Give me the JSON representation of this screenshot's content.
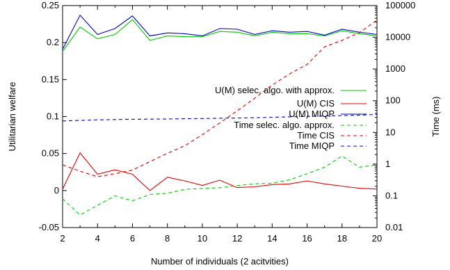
{
  "chart_data": {
    "type": "line",
    "xlabel": "Number of individuals (2 acitvities)",
    "ylabel_left": "Utilitarian welfare",
    "ylabel_right": "Time (ms)",
    "x_ticks": [
      "2",
      "4",
      "6",
      "8",
      "10",
      "12",
      "14",
      "16",
      "18",
      "20"
    ],
    "y_left_ticks": [
      "-0.05",
      "0",
      "0.05",
      "0.1",
      "0.15",
      "0.2",
      "0.25"
    ],
    "y_right_ticks": [
      "0.01",
      "0.1",
      "1",
      "10",
      "100",
      "1000",
      "10000",
      "100000"
    ],
    "xlim": [
      2,
      20
    ],
    "ylim_left": [
      -0.05,
      0.25
    ],
    "ylim_right": [
      0.01,
      100000
    ],
    "y_right_scale": "log",
    "grid": false,
    "legend_position": "center-right",
    "x": [
      2,
      3,
      4,
      5,
      6,
      7,
      8,
      9,
      10,
      11,
      12,
      13,
      14,
      15,
      16,
      17,
      18,
      19,
      20
    ],
    "series": [
      {
        "name": "U(M) selec. algo. with approx.",
        "axis": "left",
        "color": "#00cc00",
        "dash": "solid",
        "values": [
          0.188,
          0.221,
          0.205,
          0.211,
          0.231,
          0.203,
          0.209,
          0.208,
          0.208,
          0.215,
          0.214,
          0.209,
          0.214,
          0.212,
          0.212,
          0.209,
          0.216,
          0.212,
          0.209
        ]
      },
      {
        "name": "U(M) CIS",
        "axis": "left",
        "color": "#dd0000",
        "dash": "solid",
        "values": [
          0.002,
          0.051,
          0.022,
          0.028,
          0.022,
          0.0,
          0.018,
          0.013,
          0.007,
          0.014,
          0.004,
          0.005,
          0.008,
          0.009,
          0.013,
          0.009,
          0.006,
          0.003,
          0.002
        ]
      },
      {
        "name": "U(M) MIQP",
        "axis": "left",
        "color": "#0000cc",
        "dash": "solid",
        "values": [
          0.191,
          0.237,
          0.211,
          0.219,
          0.236,
          0.209,
          0.213,
          0.212,
          0.209,
          0.219,
          0.218,
          0.211,
          0.216,
          0.214,
          0.215,
          0.21,
          0.218,
          0.214,
          0.211
        ]
      },
      {
        "name": "Time selec. algo. approx.",
        "axis": "right",
        "color": "#00cc00",
        "dash": "dashed",
        "values": [
          0.08,
          0.025,
          0.05,
          0.1,
          0.07,
          0.11,
          0.12,
          0.16,
          0.17,
          0.18,
          0.21,
          0.24,
          0.25,
          0.32,
          0.5,
          0.8,
          1.8,
          0.8,
          0.95
        ]
      },
      {
        "name": "Time CIS",
        "axis": "right",
        "color": "#dd0000",
        "dash": "dashed",
        "values": [
          0.95,
          0.6,
          0.4,
          0.5,
          0.65,
          1.2,
          2.2,
          3.8,
          8.5,
          20,
          48,
          120,
          310,
          700,
          1400,
          5000,
          8000,
          14000,
          35000
        ]
      },
      {
        "name": "Time MIQP",
        "axis": "right",
        "color": "#0000cc",
        "dash": "dashed",
        "values": [
          23,
          24,
          25,
          25.5,
          26,
          26.2,
          26.5,
          27,
          27.5,
          28,
          28.5,
          29,
          30,
          31,
          32,
          33,
          34,
          35,
          37
        ]
      }
    ]
  }
}
